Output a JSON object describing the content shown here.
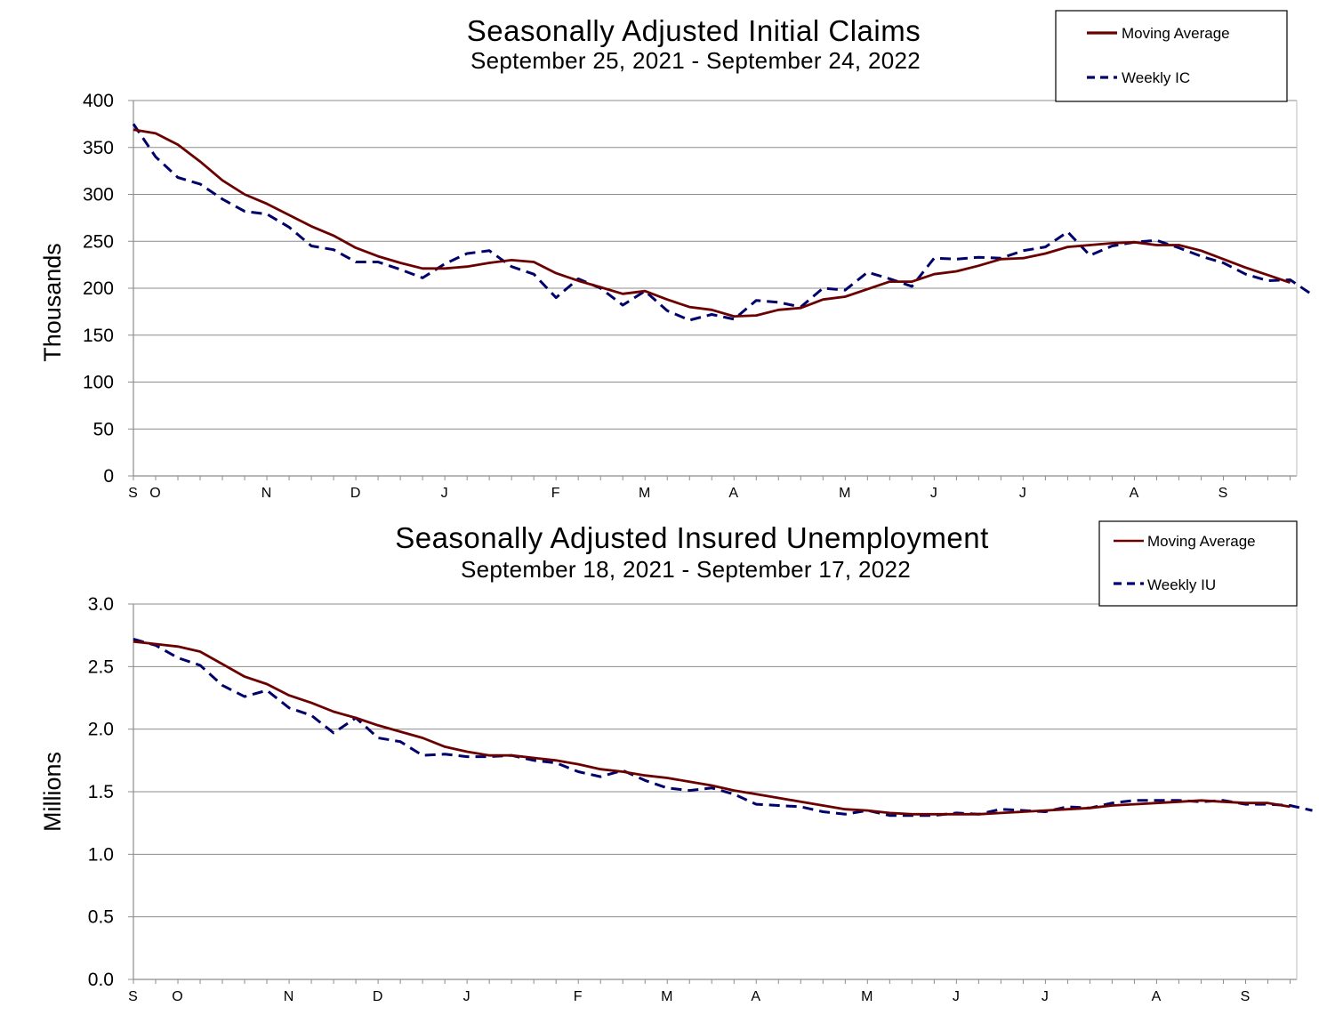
{
  "colors": {
    "moving_average": "#6b0000",
    "weekly": "#00006b",
    "grid": "#8c8c8c",
    "axis": "#8c8c8c"
  },
  "chart_data": [
    {
      "type": "line",
      "title": "Seasonally Adjusted Initial Claims",
      "subtitle": "September 25, 2021 - September 24, 2022",
      "ylabel": "Thousands",
      "ylim": [
        0,
        400
      ],
      "yticks": [
        "0",
        "50",
        "100",
        "150",
        "200",
        "250",
        "300",
        "350",
        "400"
      ],
      "month_labels": [
        {
          "label": "S",
          "week": 0
        },
        {
          "label": "O",
          "week": 1
        },
        {
          "label": "N",
          "week": 6
        },
        {
          "label": "D",
          "week": 10
        },
        {
          "label": "J",
          "week": 14
        },
        {
          "label": "F",
          "week": 19
        },
        {
          "label": "M",
          "week": 23
        },
        {
          "label": "A",
          "week": 27
        },
        {
          "label": "M",
          "week": 32
        },
        {
          "label": "J",
          "week": 36
        },
        {
          "label": "J",
          "week": 40
        },
        {
          "label": "A",
          "week": 45
        },
        {
          "label": "S",
          "week": 49
        }
      ],
      "grid": true,
      "legend_position": "top-right",
      "series": [
        {
          "name": "Moving Average",
          "style": "solid",
          "values": [
            369,
            365,
            353,
            335,
            315,
            300,
            290,
            278,
            266,
            256,
            243,
            234,
            227,
            221,
            221,
            223,
            227,
            230,
            228,
            216,
            208,
            201,
            194,
            197,
            188,
            180,
            177,
            170,
            171,
            177,
            179,
            188,
            191,
            199,
            207,
            207,
            215,
            218,
            224,
            231,
            232,
            237,
            244,
            246,
            248,
            249,
            246,
            246,
            240,
            231,
            222,
            214,
            206
          ]
        },
        {
          "name": "Weekly IC",
          "style": "dashed",
          "values": [
            375,
            340,
            318,
            311,
            295,
            282,
            279,
            265,
            245,
            241,
            228,
            228,
            220,
            211,
            226,
            237,
            240,
            223,
            215,
            190,
            210,
            200,
            182,
            197,
            176,
            166,
            172,
            167,
            187,
            185,
            180,
            200,
            198,
            217,
            210,
            202,
            232,
            231,
            233,
            232,
            240,
            244,
            260,
            235,
            245,
            249,
            251,
            243,
            234,
            227,
            215,
            208,
            209,
            193
          ]
        }
      ]
    },
    {
      "type": "line",
      "title": "Seasonally Adjusted Insured Unemployment",
      "subtitle": "September 18, 2021 - September 17, 2022",
      "ylabel": "Millions",
      "ylim": [
        0,
        3
      ],
      "yticks": [
        "0.0",
        "0.5",
        "1.0",
        "1.5",
        "2.0",
        "2.5",
        "3.0"
      ],
      "month_labels": [
        {
          "label": "S",
          "week": 0
        },
        {
          "label": "O",
          "week": 2
        },
        {
          "label": "N",
          "week": 7
        },
        {
          "label": "D",
          "week": 11
        },
        {
          "label": "J",
          "week": 15
        },
        {
          "label": "F",
          "week": 20
        },
        {
          "label": "M",
          "week": 24
        },
        {
          "label": "A",
          "week": 28
        },
        {
          "label": "M",
          "week": 33
        },
        {
          "label": "J",
          "week": 37
        },
        {
          "label": "J",
          "week": 41
        },
        {
          "label": "A",
          "week": 46
        },
        {
          "label": "S",
          "week": 50
        }
      ],
      "grid": true,
      "legend_position": "top-right",
      "series": [
        {
          "name": "Moving Average",
          "style": "solid",
          "values": [
            2.7,
            2.68,
            2.66,
            2.62,
            2.52,
            2.42,
            2.36,
            2.27,
            2.21,
            2.14,
            2.09,
            2.03,
            1.98,
            1.93,
            1.86,
            1.82,
            1.79,
            1.79,
            1.77,
            1.75,
            1.72,
            1.68,
            1.66,
            1.63,
            1.61,
            1.58,
            1.55,
            1.51,
            1.48,
            1.45,
            1.42,
            1.39,
            1.36,
            1.35,
            1.33,
            1.32,
            1.32,
            1.32,
            1.32,
            1.33,
            1.34,
            1.35,
            1.36,
            1.37,
            1.39,
            1.4,
            1.41,
            1.42,
            1.43,
            1.42,
            1.41,
            1.41,
            1.38
          ]
        },
        {
          "name": "Weekly IU",
          "style": "dashed",
          "values": [
            2.72,
            2.67,
            2.57,
            2.51,
            2.35,
            2.26,
            2.31,
            2.17,
            2.11,
            1.97,
            2.09,
            1.93,
            1.9,
            1.79,
            1.8,
            1.78,
            1.78,
            1.79,
            1.75,
            1.73,
            1.66,
            1.62,
            1.67,
            1.59,
            1.53,
            1.51,
            1.53,
            1.48,
            1.4,
            1.39,
            1.38,
            1.34,
            1.32,
            1.35,
            1.31,
            1.31,
            1.31,
            1.33,
            1.32,
            1.36,
            1.35,
            1.34,
            1.38,
            1.37,
            1.41,
            1.43,
            1.43,
            1.43,
            1.42,
            1.43,
            1.4,
            1.4,
            1.39,
            1.35
          ]
        }
      ]
    }
  ]
}
